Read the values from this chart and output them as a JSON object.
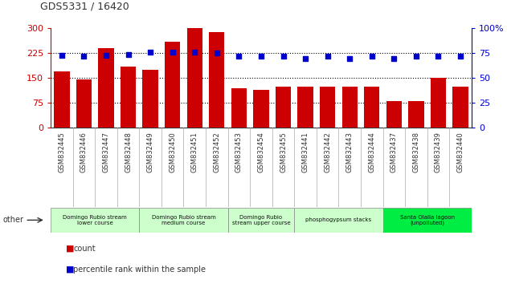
{
  "title": "GDS5331 / 16420",
  "samples": [
    "GSM832445",
    "GSM832446",
    "GSM832447",
    "GSM832448",
    "GSM832449",
    "GSM832450",
    "GSM832451",
    "GSM832452",
    "GSM832453",
    "GSM832454",
    "GSM832455",
    "GSM832441",
    "GSM832442",
    "GSM832443",
    "GSM832444",
    "GSM832437",
    "GSM832438",
    "GSM832439",
    "GSM832440"
  ],
  "counts": [
    170,
    145,
    240,
    185,
    175,
    260,
    300,
    290,
    120,
    115,
    125,
    125,
    125,
    125,
    125,
    80,
    80,
    150,
    125
  ],
  "percentiles": [
    73,
    72,
    73,
    74,
    76,
    76,
    76,
    75,
    72,
    72,
    72,
    70,
    72,
    70,
    72,
    70,
    72,
    72,
    72
  ],
  "bar_color": "#cc0000",
  "dot_color": "#0000cc",
  "left_ylim": [
    0,
    300
  ],
  "right_ylim": [
    0,
    100
  ],
  "left_yticks": [
    0,
    75,
    150,
    225,
    300
  ],
  "right_yticks": [
    0,
    25,
    50,
    75,
    100
  ],
  "groups": [
    {
      "label": "Domingo Rubio stream\nlower course",
      "start": 0,
      "end": 4
    },
    {
      "label": "Domingo Rubio stream\nmedium course",
      "start": 4,
      "end": 8
    },
    {
      "label": "Domingo Rubio\nstream upper course",
      "start": 8,
      "end": 11
    },
    {
      "label": "phosphogypsum stacks",
      "start": 11,
      "end": 15
    },
    {
      "label": "Santa Olalla lagoon\n(unpolluted)",
      "start": 15,
      "end": 19
    }
  ],
  "group_colors": [
    "#ccffcc",
    "#ccffcc",
    "#ccffcc",
    "#ccffcc",
    "#00ee44"
  ],
  "left_axis_color": "#cc0000",
  "right_axis_color": "#0000cc",
  "background_color": "#ffffff",
  "plot_bg_color": "#ffffff",
  "tick_bg_color": "#cccccc",
  "grid_yticks": [
    75,
    150,
    225
  ]
}
